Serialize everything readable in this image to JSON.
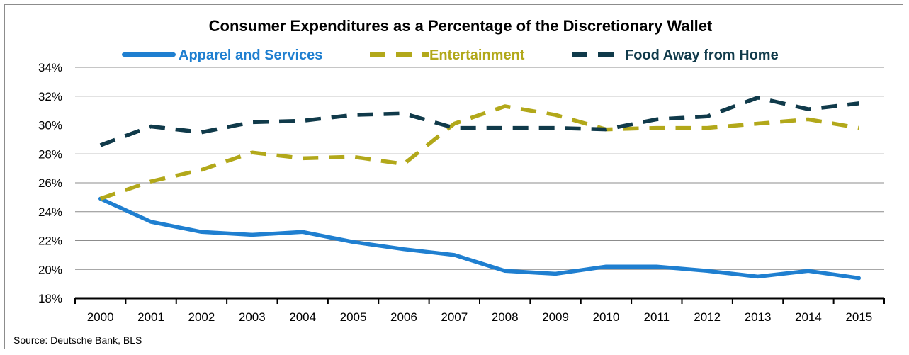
{
  "chart_data": {
    "type": "line",
    "title": "Consumer Expenditures as a Percentage of the Discretionary Wallet",
    "categories": [
      "2000",
      "2001",
      "2002",
      "2003",
      "2004",
      "2005",
      "2006",
      "2007",
      "2008",
      "2009",
      "2010",
      "2011",
      "2012",
      "2013",
      "2014",
      "2015"
    ],
    "series": [
      {
        "name": "Apparel and Services",
        "color": "#1f7fd0",
        "style": "solid",
        "values": [
          24.9,
          23.3,
          22.6,
          22.4,
          22.6,
          21.9,
          21.4,
          21.0,
          19.9,
          19.7,
          20.2,
          20.2,
          19.9,
          19.5,
          19.9,
          19.4
        ]
      },
      {
        "name": "Entertainment",
        "color": "#b2a81a",
        "style": "dashed",
        "values": [
          24.9,
          26.1,
          26.9,
          28.1,
          27.7,
          27.8,
          27.3,
          30.1,
          31.3,
          30.7,
          29.7,
          29.8,
          29.8,
          30.1,
          30.4,
          29.8
        ]
      },
      {
        "name": "Food Away from Home",
        "color": "#103a4a",
        "style": "dashed",
        "values": [
          28.6,
          29.9,
          29.5,
          30.2,
          30.3,
          30.7,
          30.8,
          29.8,
          29.8,
          29.8,
          29.7,
          30.4,
          30.6,
          31.9,
          31.1,
          31.5
        ]
      }
    ],
    "ylim": [
      18,
      34
    ],
    "yticks": [
      "18%",
      "20%",
      "22%",
      "24%",
      "26%",
      "28%",
      "30%",
      "32%",
      "34%"
    ],
    "grid": true,
    "legend": "top"
  },
  "source": "Source: Deutsche Bank, BLS"
}
